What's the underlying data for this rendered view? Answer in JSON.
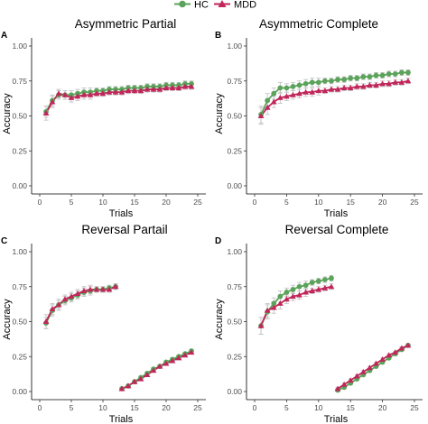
{
  "colors": {
    "HC": "#5ba35b",
    "MDD": "#c0265a",
    "errorbar": "#bdbdbd"
  },
  "legend": {
    "items": [
      {
        "label": "HC",
        "marker": "circle"
      },
      {
        "label": "MDD",
        "marker": "triangle"
      }
    ]
  },
  "chart_data": [
    {
      "id": "A",
      "letter": "A",
      "type": "line",
      "title": "Asymmetric Partial",
      "xlabel": "Trials",
      "ylabel": "Accuracy",
      "xlim": [
        0,
        25
      ],
      "ylim": [
        0,
        1
      ],
      "xticks": [
        0,
        5,
        10,
        15,
        20,
        25
      ],
      "yticks": [
        0,
        0.25,
        0.5,
        0.75,
        1
      ],
      "ytick_labels": [
        "0.00",
        "0.25",
        "0.50",
        "0.75",
        "1.00"
      ],
      "series": [
        {
          "name": "HC",
          "x": [
            1,
            2,
            3,
            4,
            5,
            6,
            7,
            8,
            9,
            10,
            11,
            12,
            13,
            14,
            15,
            16,
            17,
            18,
            19,
            20,
            21,
            22,
            23,
            24
          ],
          "y": [
            0.53,
            0.61,
            0.65,
            0.65,
            0.65,
            0.66,
            0.67,
            0.67,
            0.68,
            0.68,
            0.69,
            0.69,
            0.69,
            0.7,
            0.7,
            0.7,
            0.71,
            0.71,
            0.71,
            0.72,
            0.72,
            0.72,
            0.73,
            0.73
          ],
          "err": [
            0.04,
            0.04,
            0.03,
            0.03,
            0.03,
            0.03,
            0.03,
            0.03,
            0.02,
            0.02,
            0.02,
            0.02,
            0.02,
            0.02,
            0.02,
            0.02,
            0.02,
            0.02,
            0.02,
            0.02,
            0.02,
            0.02,
            0.02,
            0.02
          ]
        },
        {
          "name": "MDD",
          "x": [
            1,
            2,
            3,
            4,
            5,
            6,
            7,
            8,
            9,
            10,
            11,
            12,
            13,
            14,
            15,
            16,
            17,
            18,
            19,
            20,
            21,
            22,
            23,
            24
          ],
          "y": [
            0.52,
            0.6,
            0.66,
            0.65,
            0.63,
            0.64,
            0.65,
            0.65,
            0.66,
            0.66,
            0.67,
            0.67,
            0.67,
            0.68,
            0.68,
            0.68,
            0.69,
            0.69,
            0.69,
            0.7,
            0.7,
            0.7,
            0.71,
            0.71
          ],
          "err": [
            0.05,
            0.04,
            0.03,
            0.03,
            0.03,
            0.03,
            0.03,
            0.03,
            0.02,
            0.02,
            0.02,
            0.02,
            0.02,
            0.02,
            0.02,
            0.02,
            0.02,
            0.02,
            0.02,
            0.02,
            0.02,
            0.02,
            0.02,
            0.02
          ]
        }
      ]
    },
    {
      "id": "B",
      "letter": "B",
      "type": "line",
      "title": "Asymmetric Complete",
      "xlabel": "Trials",
      "ylabel": "Accuracy",
      "xlim": [
        0,
        25
      ],
      "ylim": [
        0,
        1
      ],
      "xticks": [
        0,
        5,
        10,
        15,
        20,
        25
      ],
      "yticks": [
        0,
        0.25,
        0.5,
        0.75,
        1
      ],
      "ytick_labels": [
        "0.00",
        "0.25",
        "0.50",
        "0.75",
        "1.00"
      ],
      "series": [
        {
          "name": "HC",
          "x": [
            1,
            2,
            3,
            4,
            5,
            6,
            7,
            8,
            9,
            10,
            11,
            12,
            13,
            14,
            15,
            16,
            17,
            18,
            19,
            20,
            21,
            22,
            23,
            24
          ],
          "y": [
            0.51,
            0.61,
            0.66,
            0.7,
            0.7,
            0.71,
            0.72,
            0.73,
            0.74,
            0.74,
            0.75,
            0.75,
            0.76,
            0.76,
            0.77,
            0.77,
            0.78,
            0.78,
            0.79,
            0.79,
            0.8,
            0.8,
            0.81,
            0.81
          ],
          "err": [
            0.06,
            0.05,
            0.04,
            0.04,
            0.03,
            0.03,
            0.03,
            0.03,
            0.03,
            0.03,
            0.02,
            0.02,
            0.02,
            0.02,
            0.02,
            0.02,
            0.02,
            0.02,
            0.02,
            0.02,
            0.02,
            0.02,
            0.02,
            0.02
          ]
        },
        {
          "name": "MDD",
          "x": [
            1,
            2,
            3,
            4,
            5,
            6,
            7,
            8,
            9,
            10,
            11,
            12,
            13,
            14,
            15,
            16,
            17,
            18,
            19,
            20,
            21,
            22,
            23,
            24
          ],
          "y": [
            0.5,
            0.56,
            0.6,
            0.63,
            0.64,
            0.65,
            0.66,
            0.67,
            0.67,
            0.68,
            0.68,
            0.69,
            0.69,
            0.7,
            0.7,
            0.71,
            0.71,
            0.72,
            0.72,
            0.73,
            0.73,
            0.74,
            0.74,
            0.75
          ],
          "err": [
            0.06,
            0.05,
            0.04,
            0.04,
            0.03,
            0.03,
            0.03,
            0.03,
            0.03,
            0.03,
            0.02,
            0.02,
            0.02,
            0.02,
            0.02,
            0.02,
            0.02,
            0.02,
            0.02,
            0.02,
            0.02,
            0.02,
            0.02,
            0.02
          ]
        }
      ]
    },
    {
      "id": "C",
      "letter": "C",
      "type": "line",
      "title": "Reversal Partail",
      "xlabel": "Trials",
      "ylabel": "Accuracy",
      "xlim": [
        0,
        25
      ],
      "ylim": [
        0,
        1
      ],
      "xticks": [
        0,
        5,
        10,
        15,
        20,
        25
      ],
      "yticks": [
        0,
        0.25,
        0.5,
        0.75,
        1
      ],
      "ytick_labels": [
        "0.00",
        "0.25",
        "0.50",
        "0.75",
        "1.00"
      ],
      "series": [
        {
          "name": "HC",
          "x": [
            1,
            2,
            3,
            4,
            5,
            6,
            7,
            8,
            9,
            10,
            11,
            12,
            13,
            14,
            15,
            16,
            17,
            18,
            19,
            20,
            21,
            22,
            23,
            24
          ],
          "y": [
            0.49,
            0.58,
            0.62,
            0.65,
            0.67,
            0.69,
            0.71,
            0.72,
            0.73,
            0.73,
            0.74,
            0.75,
            0.02,
            0.04,
            0.07,
            0.1,
            0.13,
            0.16,
            0.18,
            0.21,
            0.23,
            0.25,
            0.27,
            0.29
          ],
          "err": [
            0.04,
            0.04,
            0.03,
            0.03,
            0.03,
            0.03,
            0.03,
            0.03,
            0.02,
            0.02,
            0.02,
            0.02,
            0.01,
            0.01,
            0.01,
            0.01,
            0.01,
            0.01,
            0.01,
            0.01,
            0.01,
            0.01,
            0.01,
            0.01
          ]
        },
        {
          "name": "MDD",
          "x": [
            1,
            2,
            3,
            4,
            5,
            6,
            7,
            8,
            9,
            10,
            11,
            12,
            13,
            14,
            15,
            16,
            17,
            18,
            19,
            20,
            21,
            22,
            23,
            24
          ],
          "y": [
            0.5,
            0.59,
            0.62,
            0.66,
            0.68,
            0.7,
            0.72,
            0.73,
            0.73,
            0.73,
            0.73,
            0.75,
            0.02,
            0.04,
            0.07,
            0.09,
            0.12,
            0.15,
            0.18,
            0.2,
            0.22,
            0.24,
            0.26,
            0.28
          ],
          "err": [
            0.05,
            0.04,
            0.04,
            0.03,
            0.03,
            0.03,
            0.03,
            0.03,
            0.02,
            0.02,
            0.02,
            0.02,
            0.01,
            0.01,
            0.01,
            0.01,
            0.01,
            0.01,
            0.01,
            0.01,
            0.01,
            0.01,
            0.01,
            0.01
          ]
        }
      ]
    },
    {
      "id": "D",
      "letter": "D",
      "type": "line",
      "title": "Reversal Complete",
      "xlabel": "Trials",
      "ylabel": "Accuracy",
      "xlim": [
        0,
        25
      ],
      "ylim": [
        0,
        1
      ],
      "xticks": [
        0,
        5,
        10,
        15,
        20,
        25
      ],
      "yticks": [
        0,
        0.25,
        0.5,
        0.75,
        1
      ],
      "ytick_labels": [
        "0.00",
        "0.25",
        "0.50",
        "0.75",
        "1.00"
      ],
      "series": [
        {
          "name": "HC",
          "x": [
            1,
            2,
            3,
            4,
            5,
            6,
            7,
            8,
            9,
            10,
            11,
            12,
            13,
            14,
            15,
            16,
            17,
            18,
            19,
            20,
            21,
            22,
            23,
            24
          ],
          "y": [
            0.47,
            0.57,
            0.63,
            0.68,
            0.71,
            0.73,
            0.75,
            0.76,
            0.78,
            0.79,
            0.8,
            0.81,
            0.01,
            0.03,
            0.06,
            0.09,
            0.12,
            0.15,
            0.18,
            0.21,
            0.24,
            0.27,
            0.3,
            0.33
          ],
          "err": [
            0.06,
            0.05,
            0.04,
            0.04,
            0.03,
            0.03,
            0.03,
            0.03,
            0.02,
            0.02,
            0.02,
            0.02,
            0.01,
            0.01,
            0.01,
            0.01,
            0.01,
            0.01,
            0.01,
            0.01,
            0.01,
            0.01,
            0.01,
            0.01
          ]
        },
        {
          "name": "MDD",
          "x": [
            1,
            2,
            3,
            4,
            5,
            6,
            7,
            8,
            9,
            10,
            11,
            12,
            13,
            14,
            15,
            16,
            17,
            18,
            19,
            20,
            21,
            22,
            23,
            24
          ],
          "y": [
            0.47,
            0.58,
            0.6,
            0.63,
            0.66,
            0.68,
            0.69,
            0.71,
            0.72,
            0.73,
            0.74,
            0.75,
            0.02,
            0.05,
            0.08,
            0.11,
            0.14,
            0.17,
            0.2,
            0.23,
            0.26,
            0.28,
            0.31,
            0.33
          ],
          "err": [
            0.06,
            0.05,
            0.04,
            0.04,
            0.03,
            0.03,
            0.03,
            0.03,
            0.02,
            0.02,
            0.02,
            0.02,
            0.01,
            0.01,
            0.01,
            0.01,
            0.01,
            0.01,
            0.01,
            0.01,
            0.01,
            0.01,
            0.01,
            0.01
          ]
        }
      ]
    }
  ]
}
